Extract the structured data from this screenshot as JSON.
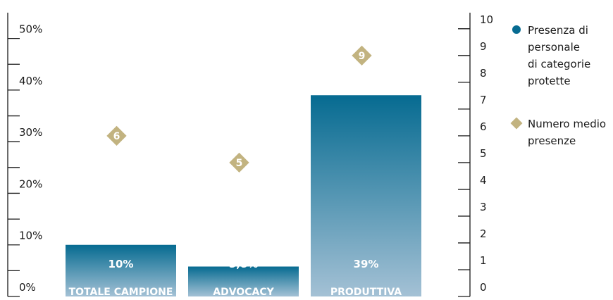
{
  "chart_data": {
    "type": "bar",
    "categories": [
      "TOTALE CAMPIONE",
      "ADVOCACY",
      "PRODUTTIVA"
    ],
    "series": [
      {
        "name": "Presenza di personale di categorie protette",
        "axis": "left",
        "values": [
          10,
          5.8,
          39
        ],
        "labels": [
          "10%",
          "5,8%",
          "39%"
        ]
      },
      {
        "name": "Numero medio presenze",
        "axis": "right",
        "marker": "diamond",
        "values": [
          6,
          5,
          9
        ],
        "labels": [
          "6",
          "5",
          "9"
        ]
      }
    ],
    "y_left": {
      "range": [
        0,
        55
      ],
      "ticks": [
        0,
        10,
        20,
        30,
        40,
        50
      ],
      "tick_labels": [
        "0%",
        "10%",
        "20%",
        "30%",
        "40%",
        "50%"
      ]
    },
    "y_right": {
      "range": [
        0,
        10.6
      ],
      "ticks": [
        0,
        1,
        2,
        3,
        4,
        5,
        6,
        7,
        8,
        9,
        10
      ],
      "tick_labels": [
        "0",
        "1",
        "2",
        "3",
        "4",
        "5",
        "6",
        "7",
        "8",
        "9",
        "10"
      ]
    },
    "legend": {
      "placement": "right",
      "items": [
        {
          "lines": [
            "Presenza di",
            "personale",
            "di categorie",
            "protette"
          ],
          "marker": "circle"
        },
        {
          "lines": [
            "Numero medio",
            "presenze"
          ],
          "marker": "diamond"
        }
      ]
    },
    "colors": {
      "bar_top": "#066b91",
      "bar_bottom": "#a4c1d5",
      "diamond": "#c2b380",
      "axis": "#1a1a1a"
    }
  }
}
